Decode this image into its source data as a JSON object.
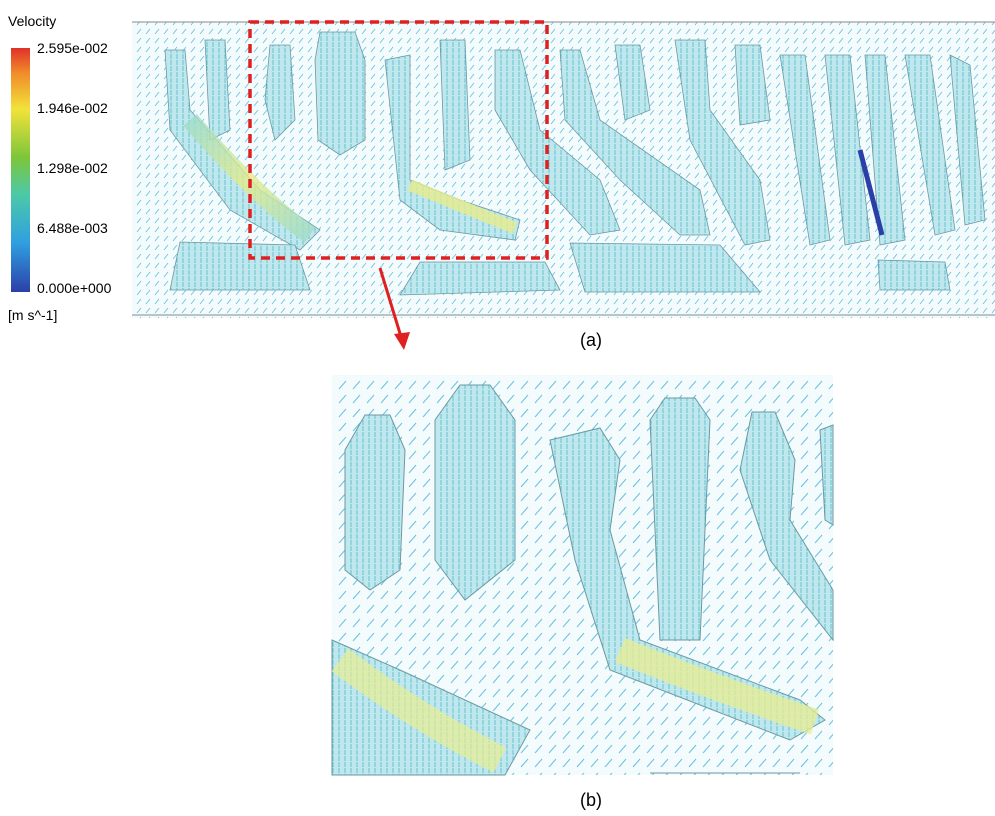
{
  "legend": {
    "title": "Velocity",
    "ticks": [
      "2.595e-002",
      "1.946e-002",
      "1.298e-002",
      "6.488e-003",
      "0.000e+000"
    ],
    "unit": "[m s^-1]"
  },
  "panels": {
    "a": {
      "caption": "(a)"
    },
    "b": {
      "caption": "(b)"
    }
  }
}
